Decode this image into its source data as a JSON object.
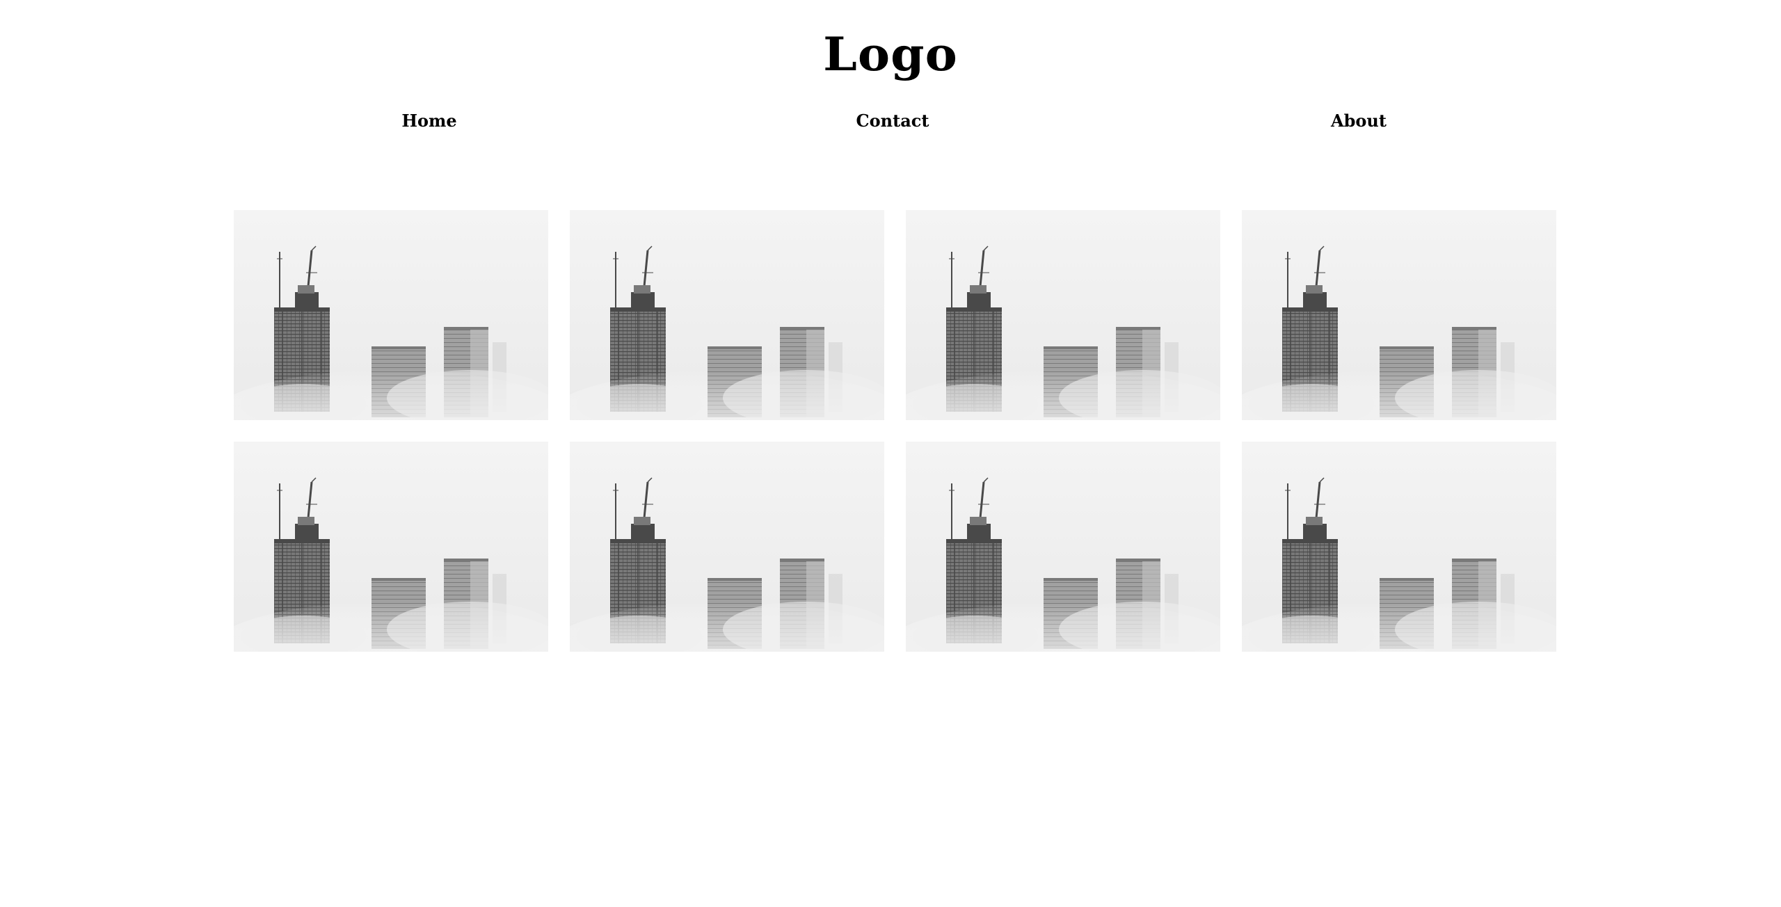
{
  "header": {
    "logo": "Logo"
  },
  "nav": {
    "items": [
      {
        "label": "Home"
      },
      {
        "label": "Contact"
      },
      {
        "label": "About"
      }
    ]
  },
  "gallery": {
    "image_subject": "foggy-skyscrapers-under-construction-photo",
    "count": 8,
    "colors": {
      "fog": "#e9e9e9",
      "fog_light": "#f3f3f3",
      "building_dark": "#3a3a3a",
      "building_mid": "#6e6e6e",
      "building_light": "#9a9a9a"
    }
  }
}
